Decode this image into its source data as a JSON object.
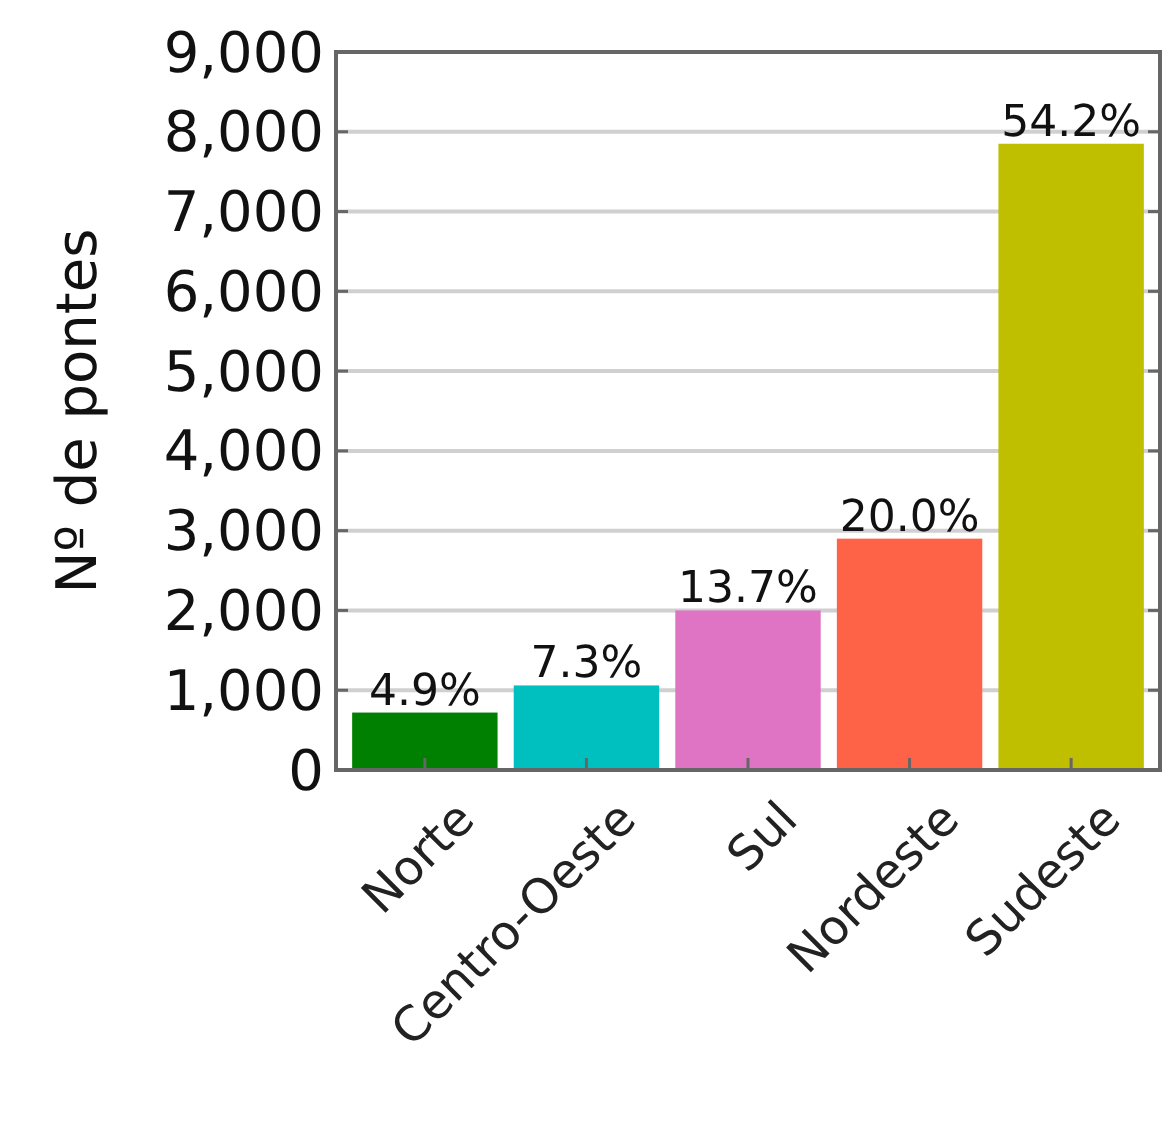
{
  "chart_data": {
    "type": "bar",
    "ylabel": "Nº de pontes",
    "categories": [
      "Norte",
      "Centro-Oeste",
      "Sul",
      "Nordeste",
      "Sudeste"
    ],
    "values": [
      720,
      1060,
      2000,
      2900,
      7850
    ],
    "colors": [
      "#008000",
      "#00bfbf",
      "#df73c4",
      "#ff6347",
      "#bfbf00"
    ],
    "annotations": [
      {
        "text": "4.9%",
        "x": "Norte",
        "y": 720
      },
      {
        "text": "7.3%",
        "x": "Centro-Oeste",
        "y": 1060
      },
      {
        "text": "13.7%",
        "x": "Sul",
        "y": 2000
      },
      {
        "text": "20.0%",
        "x": "Nordeste",
        "y": 2900
      },
      {
        "text": "54.2%",
        "x": "Sudeste",
        "y": 7850
      }
    ],
    "ylim": [
      0,
      9000
    ],
    "yticks": [
      {
        "value": 0,
        "label": "0"
      },
      {
        "value": 1000,
        "label": "1,000"
      },
      {
        "value": 2000,
        "label": "2,000"
      },
      {
        "value": 3000,
        "label": "3,000"
      },
      {
        "value": 4000,
        "label": "4,000"
      },
      {
        "value": 5000,
        "label": "5,000"
      },
      {
        "value": 6000,
        "label": "6,000"
      },
      {
        "value": 7000,
        "label": "7,000"
      },
      {
        "value": 8000,
        "label": "8,000"
      },
      {
        "value": 9000,
        "label": "9,000"
      }
    ],
    "grid": "y"
  }
}
